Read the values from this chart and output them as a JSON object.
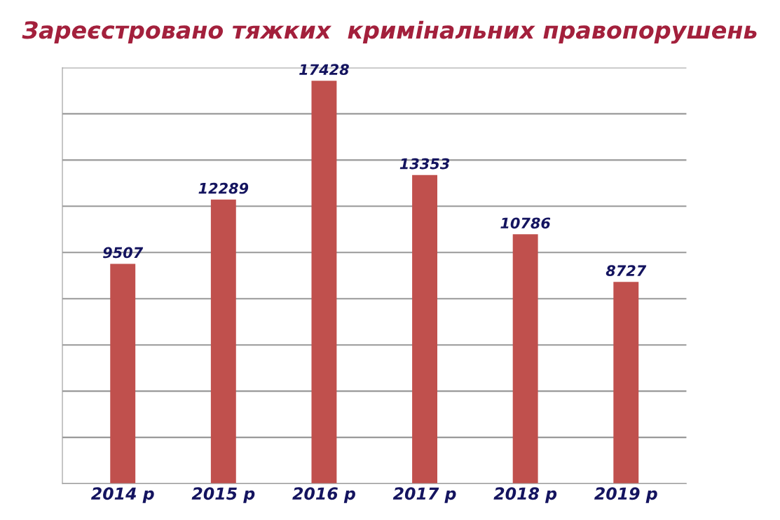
{
  "chart_data": {
    "type": "bar",
    "title": "Зареєстровано тяжких  кримінальних правопорушень",
    "categories": [
      "2014 р",
      "2015 р",
      "2016 р",
      "2017 р",
      "2018 р",
      "2019 р"
    ],
    "values": [
      9507,
      12289,
      17428,
      13353,
      10786,
      8727
    ],
    "color": "#c0504d",
    "data_labels": true,
    "ylim": [
      0,
      18000
    ],
    "yticks": [
      {
        "value": 0,
        "label": null
      },
      {
        "value": 2000,
        "label": null
      },
      {
        "value": 4000,
        "label": null
      },
      {
        "value": 6000,
        "label": null
      },
      {
        "value": 8000,
        "label": null
      },
      {
        "value": 10000,
        "label": null
      },
      {
        "value": 12000,
        "label": null
      },
      {
        "value": 14000,
        "label": null
      },
      {
        "value": 16000,
        "label": null
      },
      {
        "value": 18000,
        "label": null
      }
    ],
    "tick_labels": "x",
    "grid": "y"
  }
}
